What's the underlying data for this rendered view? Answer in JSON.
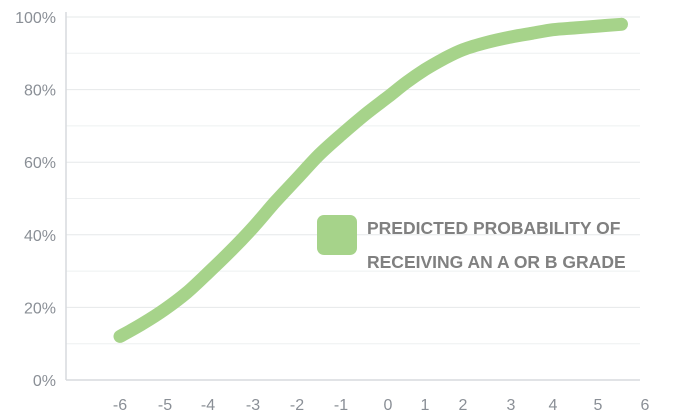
{
  "chart_data": {
    "type": "line",
    "title": "",
    "xlabel": "",
    "ylabel": "",
    "x_ticks": [
      "-6",
      "-5",
      "-4",
      "-3",
      "-2",
      "-1",
      "0",
      "1",
      "2",
      "3",
      "4",
      "5",
      "6"
    ],
    "y_ticks": [
      "0%",
      "20%",
      "40%",
      "60%",
      "80%",
      "100%"
    ],
    "ylim": [
      0,
      100
    ],
    "grid": true,
    "legend_position": "right",
    "series": [
      {
        "name": "PREDICTED PROBABILITY OF RECEIVING AN A OR B GRADE",
        "name_lines": [
          "PREDICTED PROBABILITY OF",
          "RECEIVING AN A OR B GRADE"
        ],
        "color": "#a6d38a",
        "x": [
          -6,
          -5.5,
          -5,
          -4.5,
          -4,
          -3.5,
          -3,
          -2.5,
          -2,
          -1.5,
          -1,
          -0.5,
          0,
          0.5,
          1,
          1.5,
          2,
          2.5,
          3,
          3.5,
          4,
          4.5,
          5,
          5.5
        ],
        "y": [
          12,
          15.5,
          19.5,
          24,
          29.5,
          35.5,
          42,
          49,
          55.5,
          62,
          67.5,
          73,
          78,
          82,
          85.5,
          88.5,
          91,
          93,
          94.5,
          95.5,
          96.5,
          97,
          97.5,
          98
        ]
      }
    ]
  }
}
